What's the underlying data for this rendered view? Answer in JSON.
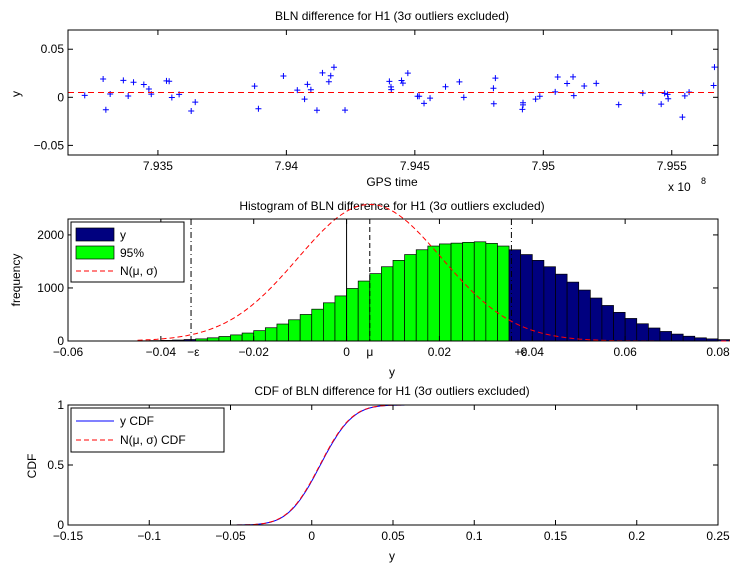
{
  "chart_data": [
    {
      "type": "scatter",
      "title": "BLN difference for H1 (3σ outliers excluded)",
      "xlabel": "GPS time",
      "ylabel": "y",
      "xlim": [
        793150000,
        795680000
      ],
      "ylim": [
        -0.06,
        0.07
      ],
      "x_exponent_label": "x 10",
      "x_exponent_power": "8",
      "xtick_values": [
        793500000,
        794000000,
        794500000,
        795000000,
        795500000
      ],
      "xtick_labels": [
        "7.935",
        "7.94",
        "7.945",
        "7.95",
        "7.955"
      ],
      "ytick_values": [
        -0.05,
        0,
        0.05
      ],
      "ytick_labels": [
        "−0.05",
        "0",
        "0.05"
      ],
      "segments": [
        [
          793150000,
          793735000
        ],
        [
          793765000,
          795068000
        ],
        [
          795090000,
          795680000
        ]
      ],
      "series": [
        {
          "marker": "+",
          "color": "#0000ff",
          "center": 0.005,
          "spread_range": [
            -0.05,
            0.06
          ]
        },
        {
          "style": "dashed",
          "color": "#ff0000",
          "values_y": 0.005
        }
      ],
      "grid": false
    },
    {
      "type": "bar",
      "title": "Histogram of BLN difference for H1 (3σ outliers excluded)",
      "xlabel": "y",
      "ylabel": "frequency",
      "xlim": [
        -0.06,
        0.08
      ],
      "ylim": [
        0,
        2300
      ],
      "xtick_values": [
        -0.06,
        -0.04,
        -0.02,
        0,
        0.02,
        0.04,
        0.06,
        0.08
      ],
      "xtick_labels": [
        "−0.06",
        "−0.04",
        "−0.02",
        "0",
        "0.02",
        "0.04",
        "0.06",
        "0.08"
      ],
      "ytick_values": [
        0,
        1000,
        2000
      ],
      "ytick_labels": [
        "0",
        "1000",
        "2000"
      ],
      "bin_width": 0.0025,
      "bin_start": -0.045,
      "counts": [
        5,
        8,
        12,
        18,
        28,
        40,
        60,
        85,
        115,
        150,
        195,
        250,
        320,
        400,
        500,
        600,
        720,
        850,
        990,
        1130,
        1270,
        1400,
        1520,
        1630,
        1720,
        1790,
        1830,
        1845,
        1860,
        1870,
        1840,
        1790,
        1720,
        1630,
        1520,
        1400,
        1260,
        1110,
        960,
        810,
        670,
        540,
        425,
        325,
        245,
        180,
        130,
        90,
        60,
        40,
        26,
        16,
        10,
        6,
        3,
        2
      ],
      "ci95": [
        -0.0335,
        0.0355
      ],
      "mu": 0.005,
      "sigma": 0.0155,
      "series": [
        {
          "name": "y",
          "color": "#00007f"
        },
        {
          "name": "95%",
          "color": "#00ff00"
        },
        {
          "name": "N(μ, σ)",
          "color": "#ff0000",
          "style": "dashed"
        }
      ],
      "annotations": [
        {
          "text": "−ε",
          "x": -0.033
        },
        {
          "text": "μ",
          "x": 0.005
        },
        {
          "text": "+ε",
          "x": 0.0375
        }
      ],
      "legend_position": "top-left"
    },
    {
      "type": "line",
      "title": "CDF of BLN difference for H1 (3σ outliers excluded)",
      "xlabel": "y",
      "ylabel": "CDF",
      "xlim": [
        -0.15,
        0.25
      ],
      "ylim": [
        0,
        1
      ],
      "xtick_values": [
        -0.15,
        -0.1,
        -0.05,
        0,
        0.05,
        0.1,
        0.15,
        0.2,
        0.25
      ],
      "xtick_labels": [
        "−0.15",
        "−0.1",
        "−0.05",
        "0",
        "0.05",
        "0.1",
        "0.15",
        "0.2",
        "0.25"
      ],
      "ytick_values": [
        0,
        0.5,
        1
      ],
      "ytick_labels": [
        "0",
        "0.5",
        "1"
      ],
      "domain": [
        -0.1,
        0.24
      ],
      "mu": 0.005,
      "sigma": 0.0155,
      "series": [
        {
          "name": "y CDF",
          "color": "#0000ff",
          "style": "solid"
        },
        {
          "name": "N(μ, σ) CDF",
          "color": "#ff0000",
          "style": "dashed"
        }
      ],
      "legend_position": "top-left"
    }
  ]
}
